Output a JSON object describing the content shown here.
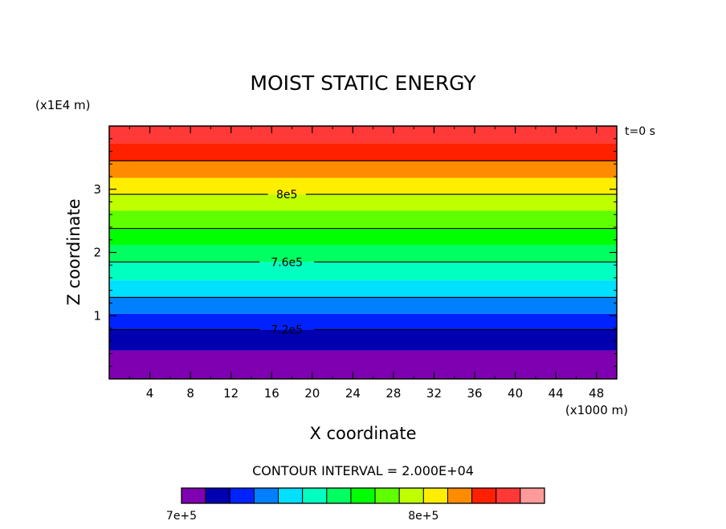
{
  "chart_data": {
    "type": "contour",
    "title": "MOIST STATIC ENERGY",
    "xlabel": "X coordinate",
    "ylabel": "Z coordinate",
    "x_unit_label": "(x1000 m)",
    "y_unit_label": "(x1E4 m)",
    "time_label": "t=0 s",
    "xlim": [
      0,
      50
    ],
    "ylim": [
      0,
      4
    ],
    "x_ticks": [
      4,
      8,
      12,
      16,
      20,
      24,
      28,
      32,
      36,
      40,
      44,
      48
    ],
    "y_ticks": [
      1,
      2,
      3
    ],
    "bands": [
      {
        "z_min": 0.0,
        "z_max": 0.45,
        "color": "#7e00b0"
      },
      {
        "z_min": 0.45,
        "z_max": 0.78,
        "color": "#0000b0"
      },
      {
        "z_min": 0.78,
        "z_max": 1.03,
        "color": "#0022ff"
      },
      {
        "z_min": 1.03,
        "z_max": 1.29,
        "color": "#0080ff"
      },
      {
        "z_min": 1.29,
        "z_max": 1.56,
        "color": "#00e0ff"
      },
      {
        "z_min": 1.56,
        "z_max": 1.85,
        "color": "#00ffc0"
      },
      {
        "z_min": 1.85,
        "z_max": 2.12,
        "color": "#00ff60"
      },
      {
        "z_min": 2.12,
        "z_max": 2.38,
        "color": "#00ff00"
      },
      {
        "z_min": 2.38,
        "z_max": 2.66,
        "color": "#60ff00"
      },
      {
        "z_min": 2.66,
        "z_max": 2.92,
        "color": "#c0ff00"
      },
      {
        "z_min": 2.92,
        "z_max": 3.18,
        "color": "#ffee00"
      },
      {
        "z_min": 3.18,
        "z_max": 3.45,
        "color": "#ff8c00"
      },
      {
        "z_min": 3.45,
        "z_max": 3.73,
        "color": "#ff2000"
      },
      {
        "z_min": 3.73,
        "z_max": 4.0,
        "color": "#ff3838"
      }
    ],
    "contour_lines": [
      0.78,
      1.29,
      1.85,
      2.38,
      2.92,
      3.45
    ],
    "contour_labels": [
      {
        "text": "8e5",
        "z": 2.92
      },
      {
        "text": "7.6e5",
        "z": 1.85
      },
      {
        "text": "7.2e5",
        "z": 0.78
      }
    ],
    "contour_interval_text": "CONTOUR INTERVAL = 2.000E+04",
    "colorbar": {
      "colors": [
        "#7e00b0",
        "#0000b0",
        "#0022ff",
        "#0080ff",
        "#00e0ff",
        "#00ffc0",
        "#00ff60",
        "#00ff00",
        "#60ff00",
        "#c0ff00",
        "#ffee00",
        "#ff8c00",
        "#ff2000",
        "#ff3838",
        "#ff9a9a"
      ],
      "labels": [
        {
          "text": "7e+5",
          "index": 0
        },
        {
          "text": "8e+5",
          "index": 10
        }
      ]
    }
  }
}
